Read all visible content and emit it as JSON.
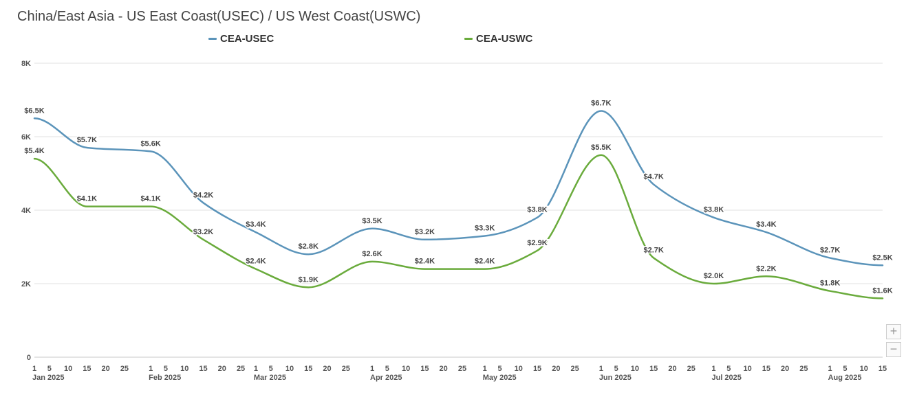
{
  "title": "China/East Asia - US East Coast(USEC) / US West Coast(USWC)",
  "zoom": {
    "plus_label": "+",
    "minus_label": "−"
  },
  "chart_data": {
    "type": "line",
    "title": "China/East Asia - US East Coast(USEC) / US West Coast(USWC)",
    "legend_position": "top",
    "grid": true,
    "smooth": true,
    "ylim": [
      0,
      8000
    ],
    "y_ticks": [
      {
        "value": 0,
        "label": "0"
      },
      {
        "value": 2000,
        "label": "2K"
      },
      {
        "value": 4000,
        "label": "4K"
      },
      {
        "value": 6000,
        "label": "6K"
      },
      {
        "value": 8000,
        "label": "8K"
      }
    ],
    "x_range": [
      "2025-01-01",
      "2025-08-15"
    ],
    "x_day_ticks": [
      "2025-01-01",
      "2025-01-05",
      "2025-01-10",
      "2025-01-15",
      "2025-01-20",
      "2025-01-25",
      "2025-02-01",
      "2025-02-05",
      "2025-02-10",
      "2025-02-15",
      "2025-02-20",
      "2025-02-25",
      "2025-03-01",
      "2025-03-05",
      "2025-03-10",
      "2025-03-15",
      "2025-03-20",
      "2025-03-25",
      "2025-04-01",
      "2025-04-05",
      "2025-04-10",
      "2025-04-15",
      "2025-04-20",
      "2025-04-25",
      "2025-05-01",
      "2025-05-05",
      "2025-05-10",
      "2025-05-15",
      "2025-05-20",
      "2025-05-25",
      "2025-06-01",
      "2025-06-05",
      "2025-06-10",
      "2025-06-15",
      "2025-06-20",
      "2025-06-25",
      "2025-07-01",
      "2025-07-05",
      "2025-07-10",
      "2025-07-15",
      "2025-07-20",
      "2025-07-25",
      "2025-08-01",
      "2025-08-05",
      "2025-08-10",
      "2025-08-15"
    ],
    "x_month_labels": [
      {
        "date": "2025-01-01",
        "label": "Jan 2025"
      },
      {
        "date": "2025-02-01",
        "label": "Feb 2025"
      },
      {
        "date": "2025-03-01",
        "label": "Mar 2025"
      },
      {
        "date": "2025-04-01",
        "label": "Apr 2025"
      },
      {
        "date": "2025-05-01",
        "label": "May 2025"
      },
      {
        "date": "2025-06-01",
        "label": "Jun 2025"
      },
      {
        "date": "2025-07-01",
        "label": "Jul 2025"
      },
      {
        "date": "2025-08-01",
        "label": "Aug 2025"
      }
    ],
    "series": [
      {
        "name": "CEA-USEC",
        "color": "#5b94ba",
        "points": [
          {
            "date": "2025-01-01",
            "value": 6500,
            "label": "$6.5K"
          },
          {
            "date": "2025-01-15",
            "value": 5700,
            "label": "$5.7K"
          },
          {
            "date": "2025-02-01",
            "value": 5600,
            "label": "$5.6K"
          },
          {
            "date": "2025-02-15",
            "value": 4200,
            "label": "$4.2K"
          },
          {
            "date": "2025-03-01",
            "value": 3400,
            "label": "$3.4K"
          },
          {
            "date": "2025-03-15",
            "value": 2800,
            "label": "$2.8K"
          },
          {
            "date": "2025-04-01",
            "value": 3500,
            "label": "$3.5K"
          },
          {
            "date": "2025-04-15",
            "value": 3200,
            "label": "$3.2K"
          },
          {
            "date": "2025-05-01",
            "value": 3300,
            "label": "$3.3K"
          },
          {
            "date": "2025-05-15",
            "value": 3800,
            "label": "$3.8K"
          },
          {
            "date": "2025-06-01",
            "value": 6700,
            "label": "$6.7K"
          },
          {
            "date": "2025-06-15",
            "value": 4700,
            "label": "$4.7K"
          },
          {
            "date": "2025-07-01",
            "value": 3800,
            "label": "$3.8K"
          },
          {
            "date": "2025-07-15",
            "value": 3400,
            "label": "$3.4K"
          },
          {
            "date": "2025-08-01",
            "value": 2700,
            "label": "$2.7K"
          },
          {
            "date": "2025-08-15",
            "value": 2500,
            "label": "$2.5K"
          }
        ]
      },
      {
        "name": "CEA-USWC",
        "color": "#6aab3c",
        "points": [
          {
            "date": "2025-01-01",
            "value": 5400,
            "label": "$5.4K"
          },
          {
            "date": "2025-01-15",
            "value": 4100,
            "label": "$4.1K"
          },
          {
            "date": "2025-02-01",
            "value": 4100,
            "label": "$4.1K"
          },
          {
            "date": "2025-02-15",
            "value": 3200,
            "label": "$3.2K"
          },
          {
            "date": "2025-03-01",
            "value": 2400,
            "label": "$2.4K"
          },
          {
            "date": "2025-03-15",
            "value": 1900,
            "label": "$1.9K"
          },
          {
            "date": "2025-04-01",
            "value": 2600,
            "label": "$2.6K"
          },
          {
            "date": "2025-04-15",
            "value": 2400,
            "label": "$2.4K"
          },
          {
            "date": "2025-05-01",
            "value": 2400,
            "label": "$2.4K"
          },
          {
            "date": "2025-05-15",
            "value": 2900,
            "label": "$2.9K"
          },
          {
            "date": "2025-06-01",
            "value": 5500,
            "label": "$5.5K"
          },
          {
            "date": "2025-06-15",
            "value": 2700,
            "label": "$2.7K"
          },
          {
            "date": "2025-07-01",
            "value": 2000,
            "label": "$2.0K"
          },
          {
            "date": "2025-07-15",
            "value": 2200,
            "label": "$2.2K"
          },
          {
            "date": "2025-08-01",
            "value": 1800,
            "label": "$1.8K"
          },
          {
            "date": "2025-08-15",
            "value": 1600,
            "label": "$1.6K"
          }
        ]
      }
    ]
  }
}
